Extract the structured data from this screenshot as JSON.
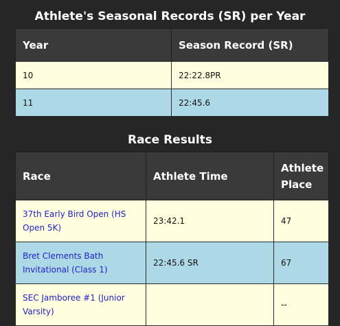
{
  "sr_section": {
    "title": "Athlete's Seasonal Records (SR) per Year",
    "headers": {
      "year": "Year",
      "season_record": "Season Record (SR)"
    },
    "rows": [
      {
        "year": "10",
        "record": "22:22.8PR"
      },
      {
        "year": "11",
        "record": "22:45.6"
      }
    ]
  },
  "results_section": {
    "title": "Race Results",
    "headers": {
      "race": "Race",
      "athlete_time": "Athlete Time",
      "athlete_place": "Athlete Place"
    },
    "rows": [
      {
        "race": "37th Early Bird Open (HS Open 5K)",
        "time": "23:42.1",
        "place": "47"
      },
      {
        "race": "Bret Clements Bath Invitational (Class 1)",
        "time": "22:45.6 SR",
        "place": "67"
      },
      {
        "race": "SEC Jamboree #1 (Junior Varsity)",
        "time": "",
        "place": "--"
      }
    ]
  },
  "colors": {
    "background": "#262626",
    "header_bg": "#3a3a3a",
    "row_light": "#ffffe0",
    "row_blue": "#add8e6",
    "link": "#1f22c8"
  }
}
